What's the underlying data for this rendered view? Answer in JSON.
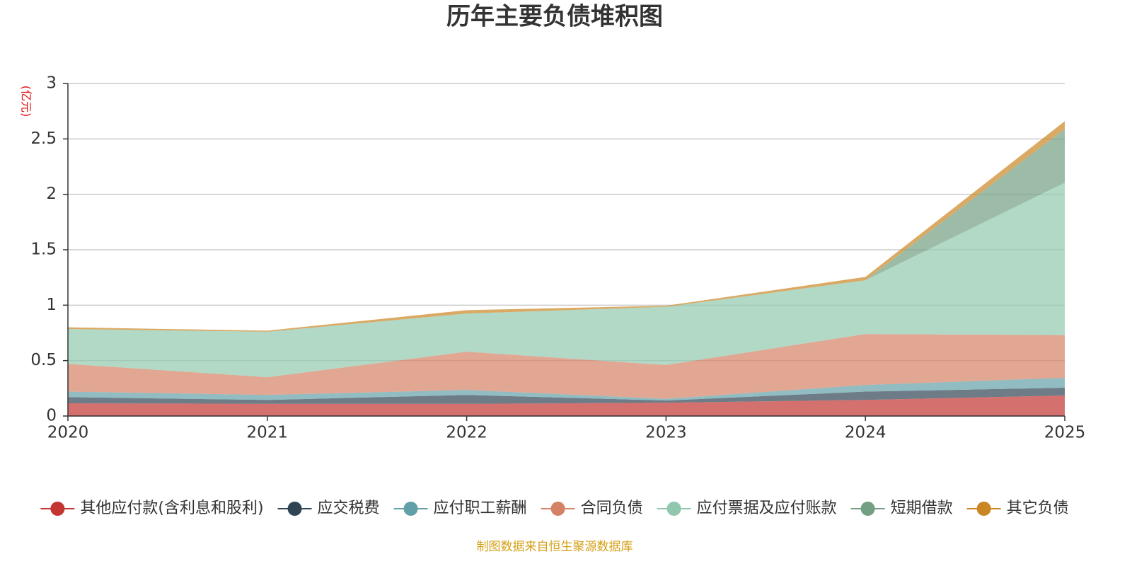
{
  "chart_data": {
    "type": "stacked-area",
    "title": "历年主要负债堆积图",
    "y_unit": "(亿元)",
    "source": "制图数据来自恒生聚源数据库",
    "categories": [
      "2020",
      "2021",
      "2022",
      "2023",
      "2024",
      "2025"
    ],
    "ylim": [
      0,
      3
    ],
    "yticks": [
      0,
      0.5,
      1,
      1.5,
      2,
      2.5,
      3
    ],
    "grid": true,
    "series": [
      {
        "name": "其他应付款(含利息和股利)",
        "color": "#c23531",
        "values": [
          0.115,
          0.11,
          0.11,
          0.12,
          0.145,
          0.185
        ]
      },
      {
        "name": "应交税费",
        "color": "#2f4554",
        "values": [
          0.055,
          0.035,
          0.08,
          0.02,
          0.075,
          0.07
        ]
      },
      {
        "name": "应付职工薪酬",
        "color": "#61a0a8",
        "values": [
          0.05,
          0.045,
          0.045,
          0.015,
          0.06,
          0.09
        ]
      },
      {
        "name": "合同负债",
        "color": "#d48265",
        "values": [
          0.25,
          0.16,
          0.345,
          0.305,
          0.46,
          0.385
        ]
      },
      {
        "name": "应付票据及应付账款",
        "color": "#91c7ae",
        "values": [
          0.315,
          0.41,
          0.345,
          0.525,
          0.485,
          1.375
        ]
      },
      {
        "name": "短期借款",
        "color": "#749f83",
        "values": [
          0,
          0,
          0,
          0,
          0,
          0.485
        ]
      },
      {
        "name": "其它负债",
        "color": "#ca8622",
        "values": [
          0.015,
          0.01,
          0.03,
          0.01,
          0.03,
          0.07
        ]
      }
    ]
  }
}
